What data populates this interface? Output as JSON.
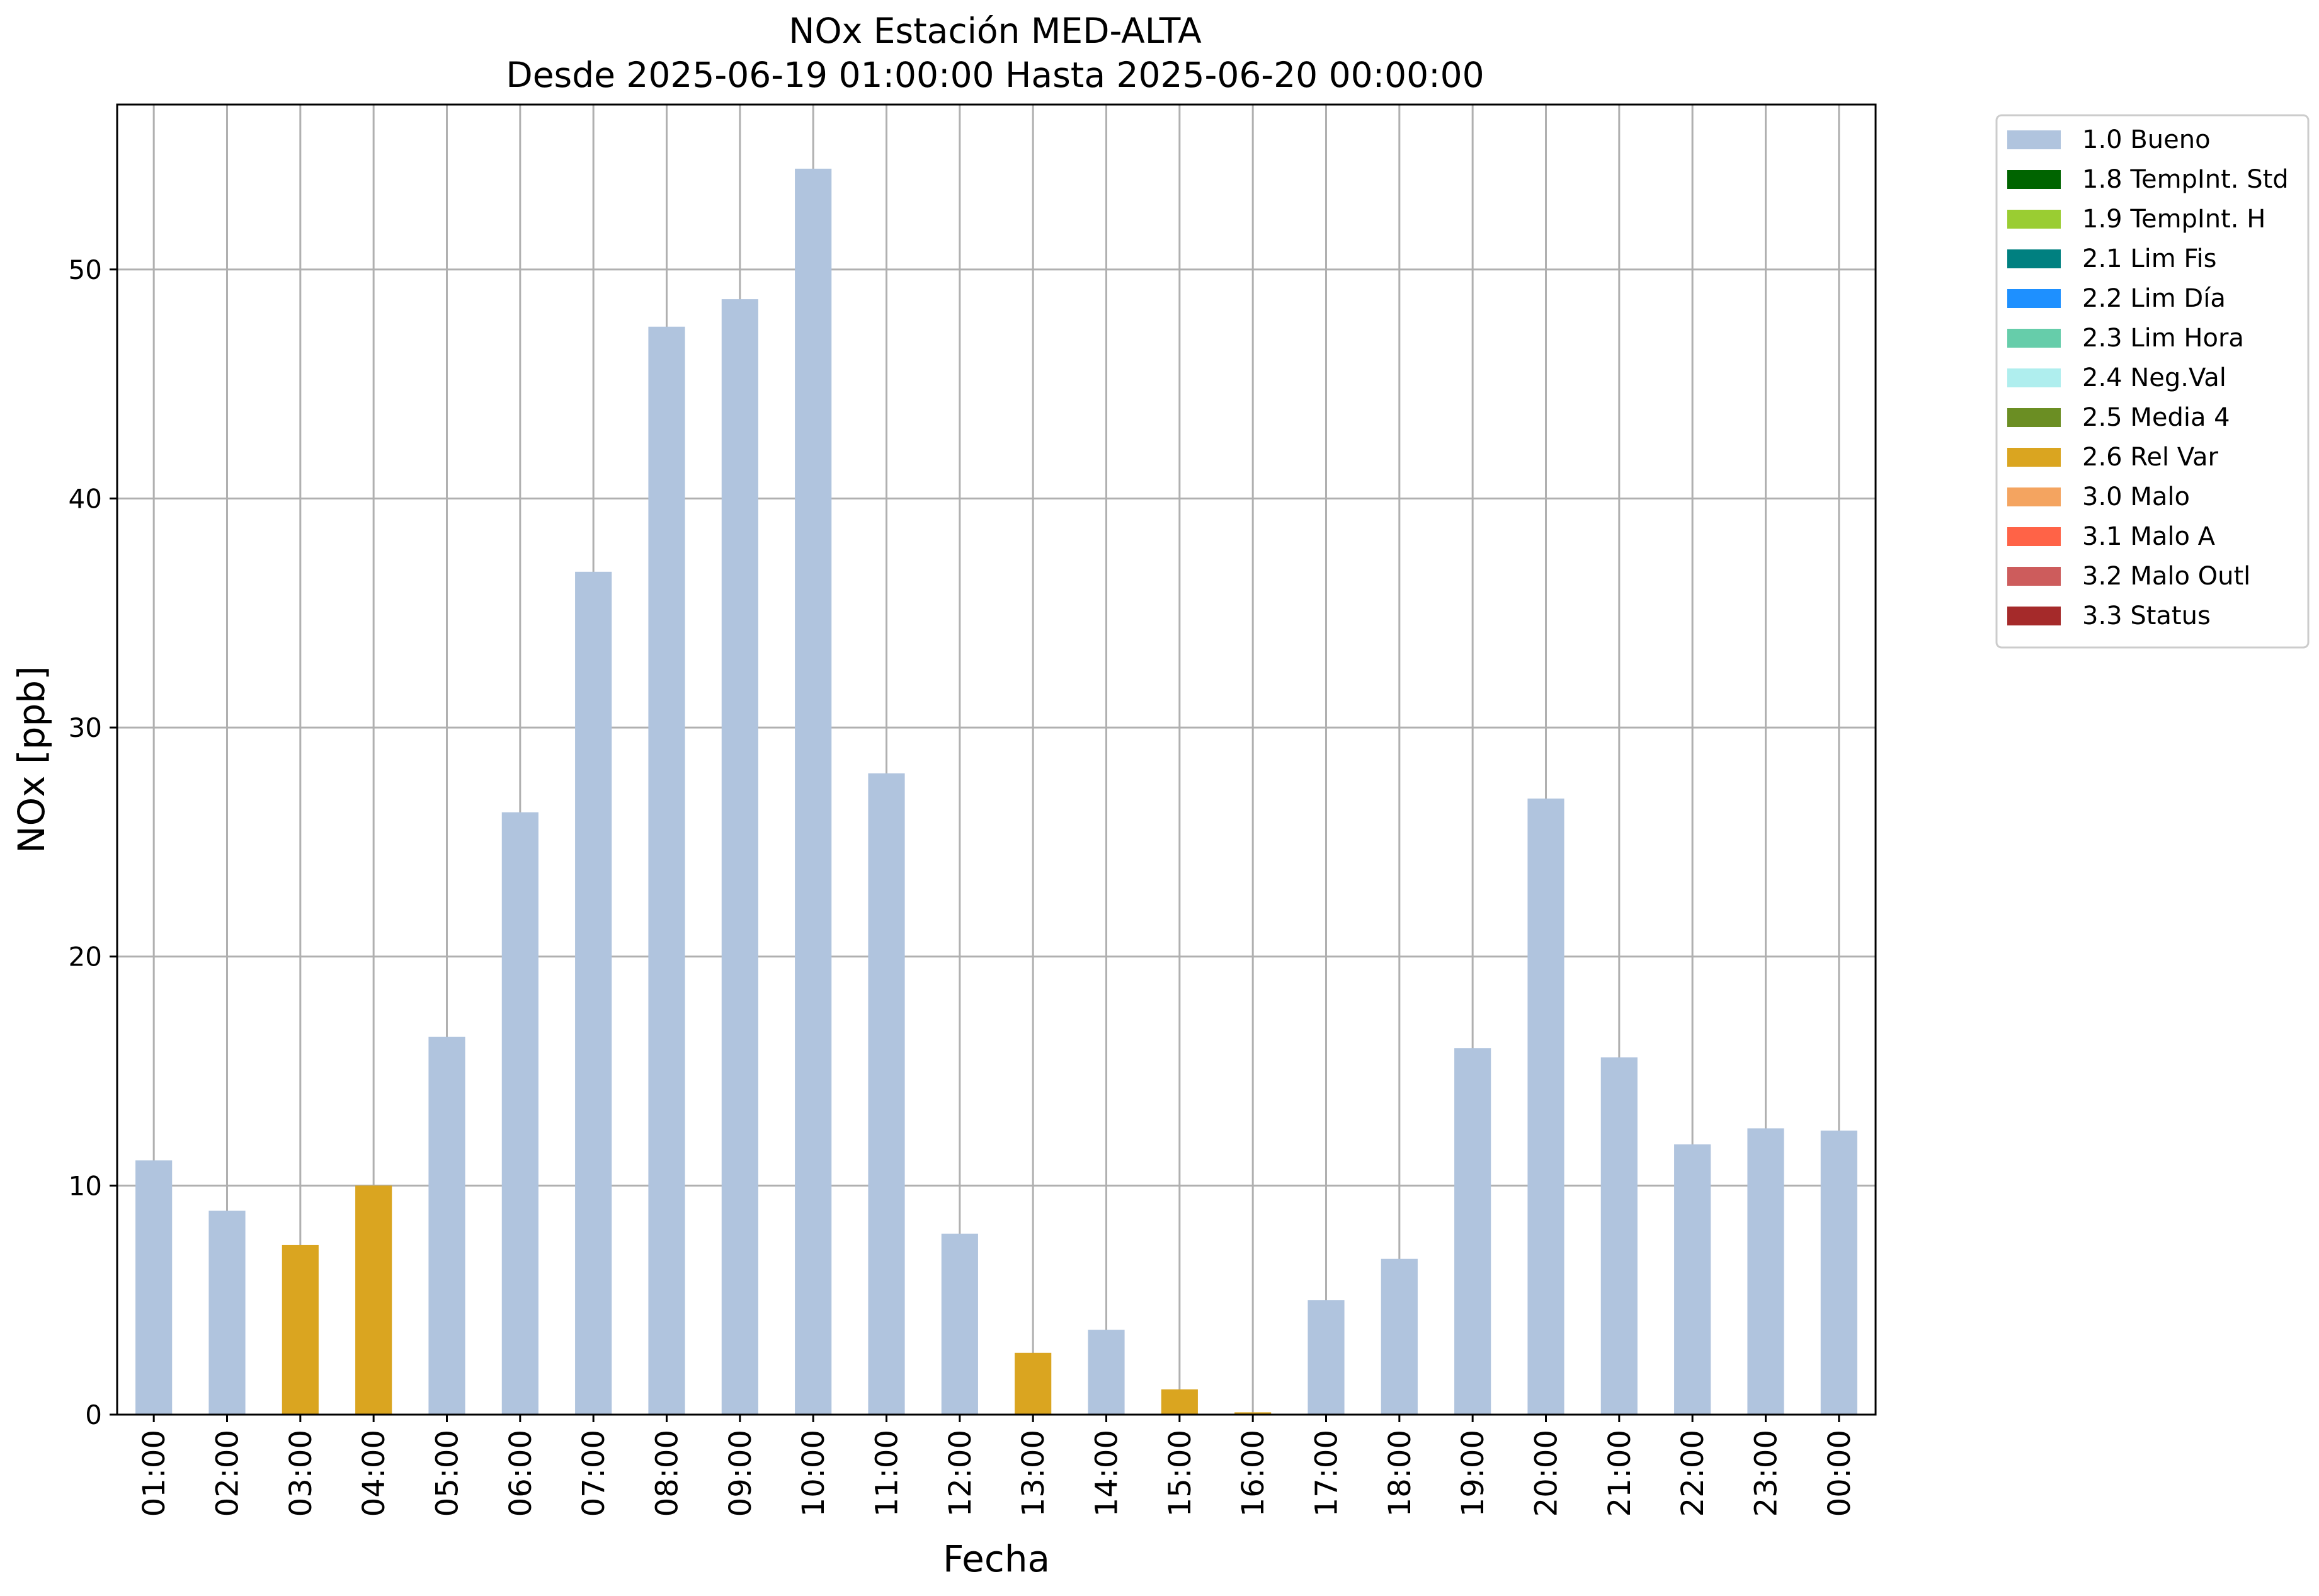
{
  "chart_data": {
    "type": "bar",
    "title": "NOx Estación MED-ALTA",
    "subtitle": "Desde 2025-06-19 01:00:00 Hasta 2025-06-20 00:00:00",
    "xlabel": "Fecha",
    "ylabel": "NOx [ppb]",
    "ylim": [
      0,
      57.2
    ],
    "yticks": [
      0,
      10,
      20,
      30,
      40,
      50
    ],
    "grid": true,
    "legend_position": "outside-top-right",
    "categories": [
      "01:00",
      "02:00",
      "03:00",
      "04:00",
      "05:00",
      "06:00",
      "07:00",
      "08:00",
      "09:00",
      "10:00",
      "11:00",
      "12:00",
      "13:00",
      "14:00",
      "15:00",
      "16:00",
      "17:00",
      "18:00",
      "19:00",
      "20:00",
      "21:00",
      "22:00",
      "23:00",
      "00:00"
    ],
    "values": [
      11.1,
      8.9,
      7.4,
      10.0,
      16.5,
      26.3,
      36.8,
      47.5,
      48.7,
      54.4,
      28.0,
      7.9,
      2.7,
      3.7,
      1.1,
      0.1,
      5.0,
      6.8,
      16.0,
      26.9,
      15.6,
      11.8,
      12.5,
      12.4
    ],
    "quality_codes": [
      "1.0",
      "1.0",
      "2.6",
      "2.6",
      "1.0",
      "1.0",
      "1.0",
      "1.0",
      "1.0",
      "1.0",
      "1.0",
      "1.0",
      "2.6",
      "1.0",
      "2.6",
      "2.6",
      "1.0",
      "1.0",
      "1.0",
      "1.0",
      "1.0",
      "1.0",
      "1.0",
      "1.0"
    ],
    "legend": [
      {
        "code": "1.0",
        "label": "1.0 Bueno",
        "color": "#B0C4DE"
      },
      {
        "code": "1.8",
        "label": "1.8 TempInt. Std",
        "color": "#006400"
      },
      {
        "code": "1.9",
        "label": "1.9 TempInt. H",
        "color": "#9ACD32"
      },
      {
        "code": "2.1",
        "label": "2.1 Lim Fis",
        "color": "#008080"
      },
      {
        "code": "2.2",
        "label": "2.2 Lim Día",
        "color": "#1E90FF"
      },
      {
        "code": "2.3",
        "label": "2.3 Lim Hora",
        "color": "#66CDAA"
      },
      {
        "code": "2.4",
        "label": "2.4 Neg.Val",
        "color": "#AFEEEE"
      },
      {
        "code": "2.5",
        "label": "2.5 Media 4",
        "color": "#6B8E23"
      },
      {
        "code": "2.6",
        "label": "2.6 Rel Var",
        "color": "#DAA520"
      },
      {
        "code": "3.0",
        "label": "3.0 Malo",
        "color": "#F4A460"
      },
      {
        "code": "3.1",
        "label": "3.1 Malo A",
        "color": "#FF6347"
      },
      {
        "code": "3.2",
        "label": "3.2 Malo Outl",
        "color": "#CD5C5C"
      },
      {
        "code": "3.3",
        "label": "3.3 Status",
        "color": "#A52A2A"
      }
    ]
  }
}
